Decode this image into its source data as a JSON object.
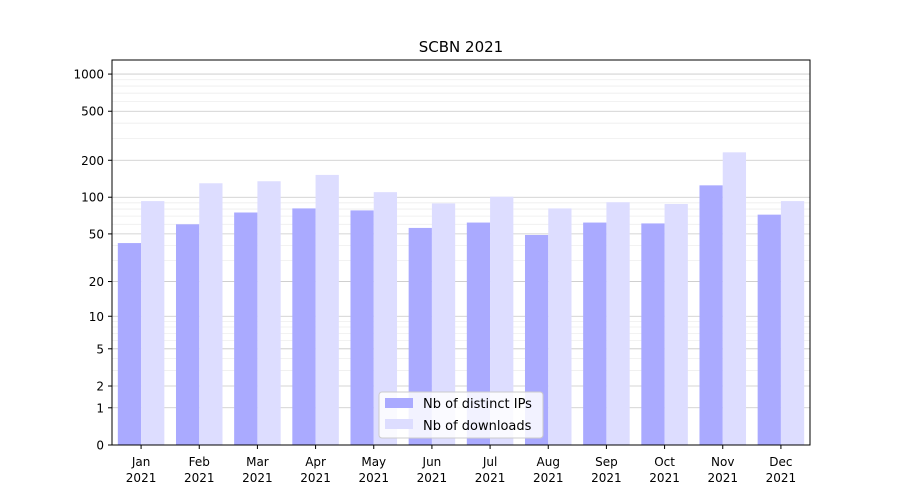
{
  "chart_data": {
    "type": "bar",
    "title": "SCBN 2021",
    "xlabel": "",
    "ylabel": "",
    "yscale": "symlog",
    "ylim": [
      0,
      1300
    ],
    "yticks": [
      0,
      1,
      2,
      5,
      10,
      20,
      50,
      100,
      200,
      500,
      1000
    ],
    "ytick_labels": [
      "0",
      "1",
      "2",
      "5",
      "10",
      "20",
      "50",
      "100",
      "200",
      "500",
      "1000"
    ],
    "categories": [
      [
        "Jan",
        "2021"
      ],
      [
        "Feb",
        "2021"
      ],
      [
        "Mar",
        "2021"
      ],
      [
        "Apr",
        "2021"
      ],
      [
        "May",
        "2021"
      ],
      [
        "Jun",
        "2021"
      ],
      [
        "Jul",
        "2021"
      ],
      [
        "Aug",
        "2021"
      ],
      [
        "Sep",
        "2021"
      ],
      [
        "Oct",
        "2021"
      ],
      [
        "Nov",
        "2021"
      ],
      [
        "Dec",
        "2021"
      ]
    ],
    "series": [
      {
        "name": "Nb of distinct IPs",
        "color": "#aaaaff",
        "values": [
          42,
          60,
          75,
          81,
          78,
          56,
          62,
          49,
          62,
          61,
          125,
          72
        ]
      },
      {
        "name": "Nb of downloads",
        "color": "#ddddff",
        "values": [
          93,
          130,
          135,
          152,
          110,
          89,
          101,
          81,
          91,
          88,
          232,
          93
        ]
      }
    ],
    "grid": true,
    "legend_position": "bottom-center"
  }
}
